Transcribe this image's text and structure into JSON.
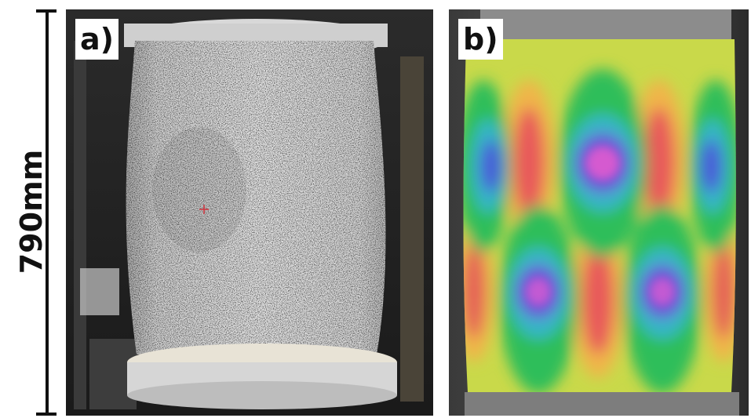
{
  "scale_bar": {
    "label": "790mm"
  },
  "panels": [
    {
      "id": "a",
      "label": "a)"
    },
    {
      "id": "b",
      "label": "b)"
    }
  ]
}
